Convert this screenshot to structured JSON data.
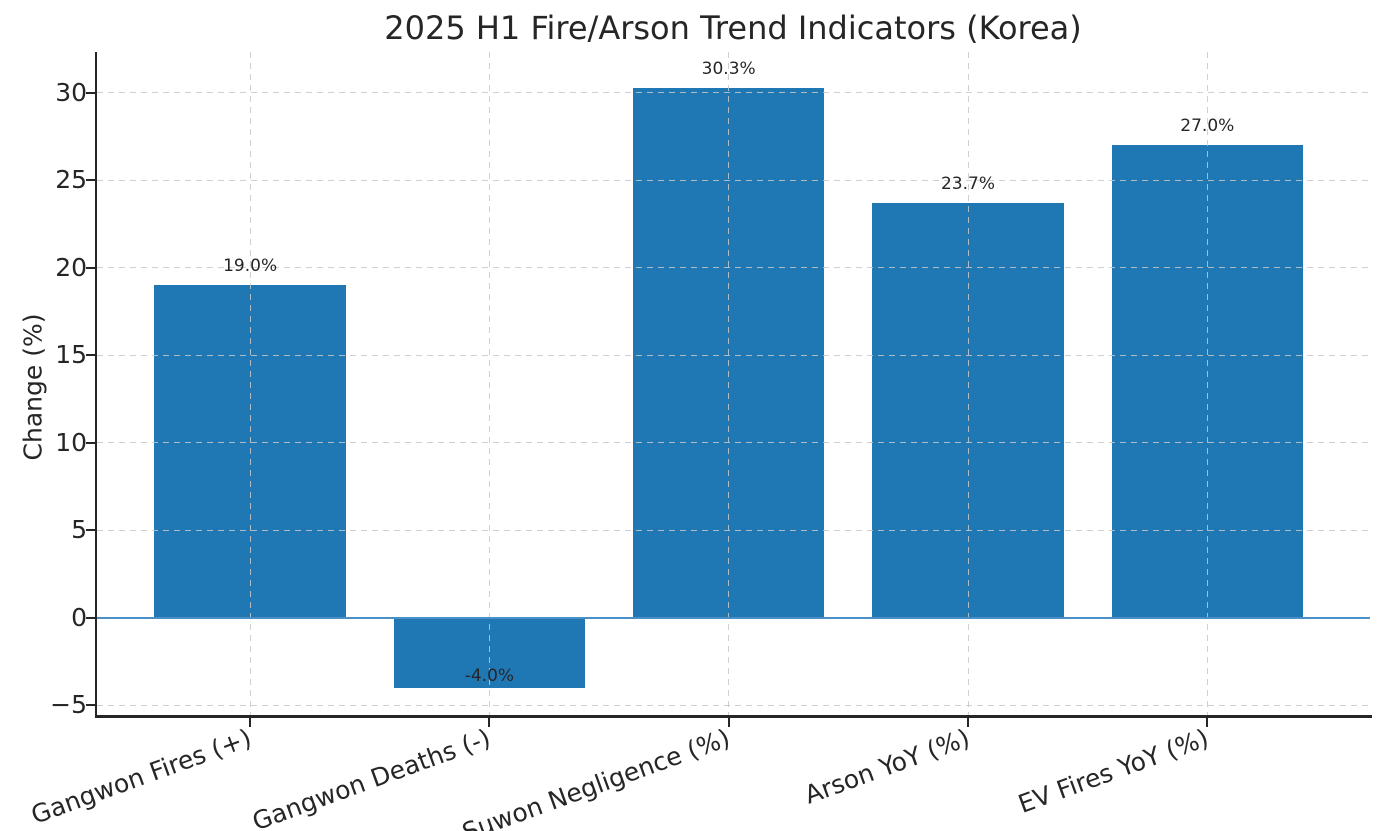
{
  "chart_data": {
    "type": "bar",
    "title": "2025 H1 Fire/Arson Trend Indicators (Korea)",
    "xlabel": "",
    "ylabel": "Change (%)",
    "categories": [
      "Gangwon Fires (+)",
      "Gangwon Deaths (-)",
      "Suwon Negligence (%)",
      "Arson YoY (%)",
      "EV Fires YoY (%)"
    ],
    "values": [
      19.0,
      -4.0,
      30.3,
      23.7,
      27.0
    ],
    "bar_labels": [
      "19.0%",
      "-4.0%",
      "30.3%",
      "23.7%",
      "27.0%"
    ],
    "yticks": [
      -5,
      0,
      5,
      10,
      15,
      20,
      25,
      30
    ],
    "ytick_labels": [
      "−5",
      "0",
      "5",
      "10",
      "15",
      "20",
      "25",
      "30"
    ],
    "ylim": [
      -5.72,
      32.33
    ],
    "xlim": [
      -0.64,
      4.68
    ],
    "bar_width": 0.8,
    "grid": true,
    "grid_style": "dashed",
    "x_tick_label_rotation_deg": 20,
    "zero_line": true,
    "legend": "none",
    "colors": {
      "bar": "#1f77b4",
      "zero_line": "#4a90c6",
      "grid": "#c8c8c8",
      "spine": "#262626",
      "text": "#262626"
    }
  }
}
